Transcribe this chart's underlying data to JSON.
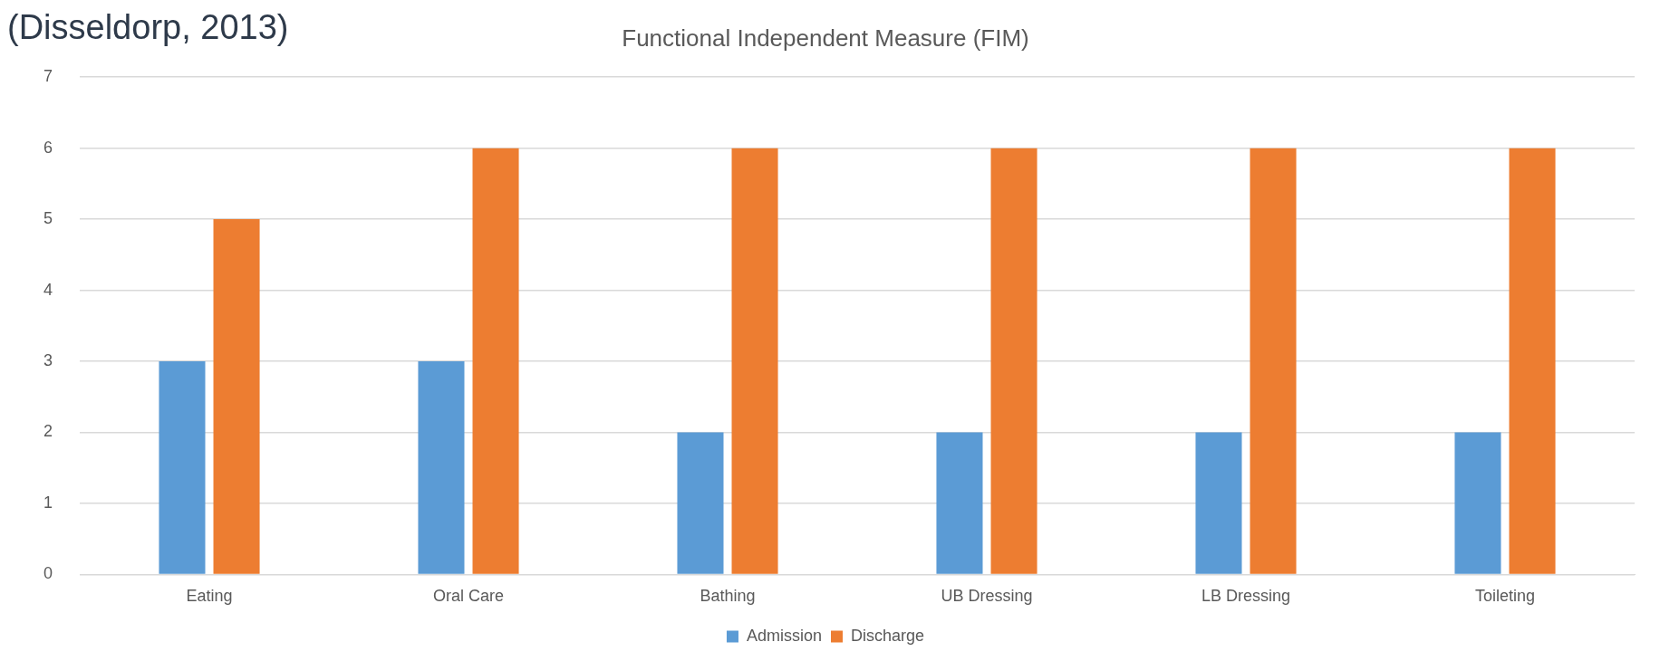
{
  "chart_data": {
    "type": "bar",
    "title": "Functional Independent Measure (FIM)",
    "annotations": [
      "(Disseldorp, 2013)"
    ],
    "categories": [
      "Eating",
      "Oral Care",
      "Bathing",
      "UB Dressing",
      "LB Dressing",
      "Toileting"
    ],
    "series": [
      {
        "name": "Admission",
        "color": "#5b9bd5",
        "values": [
          3,
          3,
          2,
          2,
          2,
          2
        ]
      },
      {
        "name": "Discharge",
        "color": "#ed7d31",
        "values": [
          5,
          6,
          6,
          6,
          6,
          6
        ]
      }
    ],
    "ylim": [
      0,
      7
    ],
    "yticks": [
      0,
      1,
      2,
      3,
      4,
      5,
      6,
      7
    ],
    "grid": "y",
    "legend": "bottom"
  }
}
